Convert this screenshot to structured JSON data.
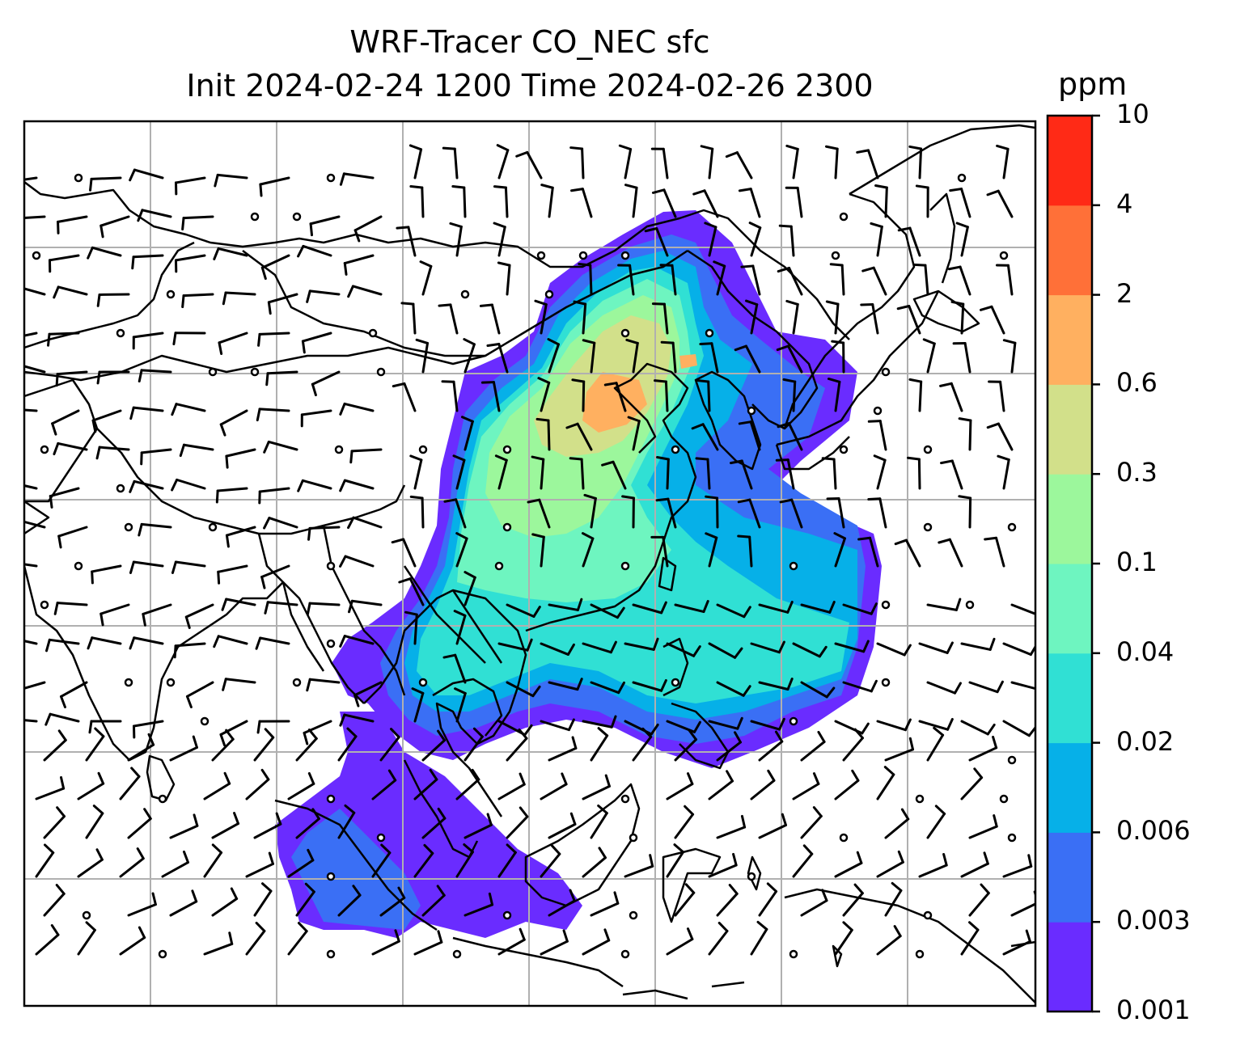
{
  "title_line1": "WRF-Tracer CO_NEC sfc",
  "title_line2": "Init 2024-02-24 1200 Time 2024-02-26 2300",
  "colorbar": {
    "unit": "ppm",
    "levels": [
      "0.001",
      "0.003",
      "0.006",
      "0.02",
      "0.04",
      "0.1",
      "0.3",
      "0.6",
      "2",
      "4",
      "10"
    ],
    "colors": [
      "#6a2cff",
      "#3a6ff5",
      "#06b0e8",
      "#30e0d4",
      "#6ef5c0",
      "#9cf79c",
      "#d2e08a",
      "#ffb060",
      "#ff7038",
      "#ff2a16"
    ]
  },
  "map": {
    "region": "East and Southeast Asia",
    "plume_center": "North China Plain",
    "symbols": [
      "coastline",
      "country-border",
      "gridline",
      "wind-barb",
      "calm-wind-circle"
    ]
  }
}
